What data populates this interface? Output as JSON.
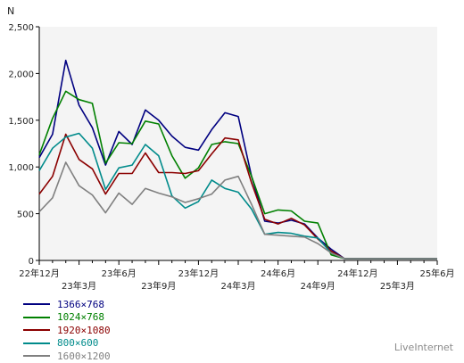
{
  "chart_data": {
    "type": "line",
    "ylabel": "N",
    "ylim": [
      0,
      2500
    ],
    "yticks": [
      0,
      500,
      1000,
      1500,
      2000,
      2500
    ],
    "ytick_labels": [
      "0",
      "500",
      "1,000",
      "1,500",
      "2,000",
      "2,500"
    ],
    "xlim": [
      0,
      30
    ],
    "xticks_row1": [
      {
        "x": 0,
        "label": "22年12月"
      },
      {
        "x": 6,
        "label": "23年6月"
      },
      {
        "x": 12,
        "label": "23年12月"
      },
      {
        "x": 18,
        "label": "24年6月"
      },
      {
        "x": 24,
        "label": "24年12月"
      },
      {
        "x": 30,
        "label": "25年6月"
      }
    ],
    "xticks_row2": [
      {
        "x": 3,
        "label": "23年3月"
      },
      {
        "x": 9,
        "label": "23年9月"
      },
      {
        "x": 15,
        "label": "24年3月"
      },
      {
        "x": 21,
        "label": "24年9月"
      },
      {
        "x": 27,
        "label": "25年3月"
      }
    ],
    "grid": false,
    "plot_background": "#f4f4f4",
    "legend_position": "bottom-left",
    "series": [
      {
        "name": "1366×768",
        "color": "#000080",
        "x": [
          0,
          1,
          2,
          3,
          4,
          5,
          6,
          7,
          8,
          9,
          10,
          11,
          12,
          13,
          14,
          15,
          16,
          17,
          18,
          19,
          20,
          21,
          22,
          23,
          24,
          25,
          26,
          27,
          28,
          29,
          30
        ],
        "values": [
          1100,
          1350,
          2140,
          1660,
          1420,
          1020,
          1380,
          1240,
          1610,
          1500,
          1330,
          1210,
          1180,
          1400,
          1580,
          1540,
          900,
          420,
          400,
          430,
          390,
          240,
          120,
          20,
          20,
          20,
          20,
          20,
          20,
          20,
          20
        ]
      },
      {
        "name": "1024×768",
        "color": "#008000",
        "x": [
          0,
          1,
          2,
          3,
          4,
          5,
          6,
          7,
          8,
          9,
          10,
          11,
          12,
          13,
          14,
          15,
          16,
          17,
          18,
          19,
          20,
          21,
          22,
          23,
          24,
          25,
          26,
          27,
          28,
          29,
          30
        ],
        "values": [
          1130,
          1520,
          1810,
          1720,
          1680,
          1040,
          1260,
          1250,
          1490,
          1460,
          1120,
          880,
          990,
          1240,
          1270,
          1250,
          900,
          500,
          540,
          530,
          420,
          400,
          60,
          20,
          20,
          20,
          20,
          20,
          20,
          20,
          20
        ]
      },
      {
        "name": "1920×1080",
        "color": "#8b0000",
        "x": [
          0,
          1,
          2,
          3,
          4,
          5,
          6,
          7,
          8,
          9,
          10,
          11,
          12,
          13,
          14,
          15,
          16,
          17,
          18,
          19,
          20,
          21,
          22,
          23,
          24,
          25,
          26,
          27,
          28,
          29,
          30
        ],
        "values": [
          710,
          900,
          1350,
          1080,
          980,
          710,
          930,
          930,
          1150,
          940,
          940,
          930,
          960,
          1140,
          1310,
          1290,
          830,
          440,
          390,
          450,
          380,
          230,
          100,
          20,
          20,
          20,
          20,
          20,
          20,
          20,
          20
        ]
      },
      {
        "name": "800×600",
        "color": "#008b8b",
        "x": [
          0,
          1,
          2,
          3,
          4,
          5,
          6,
          7,
          8,
          9,
          10,
          11,
          12,
          13,
          14,
          15,
          16,
          17,
          18,
          19,
          20,
          21,
          22,
          23,
          24,
          25,
          26,
          27,
          28,
          29,
          30
        ],
        "values": [
          960,
          1200,
          1320,
          1360,
          1200,
          760,
          990,
          1020,
          1240,
          1120,
          690,
          560,
          630,
          860,
          770,
          730,
          550,
          280,
          300,
          290,
          260,
          240,
          80,
          20,
          20,
          20,
          20,
          20,
          20,
          20,
          20
        ]
      },
      {
        "name": "1600×1200",
        "color": "#808080",
        "x": [
          0,
          1,
          2,
          3,
          4,
          5,
          6,
          7,
          8,
          9,
          10,
          11,
          12,
          13,
          14,
          15,
          16,
          17,
          18,
          19,
          20,
          21,
          22,
          23,
          24,
          25,
          26,
          27,
          28,
          29,
          30
        ],
        "values": [
          520,
          670,
          1050,
          800,
          700,
          510,
          720,
          600,
          770,
          720,
          680,
          620,
          660,
          710,
          860,
          900,
          600,
          280,
          270,
          260,
          250,
          180,
          80,
          20,
          20,
          20,
          20,
          20,
          20,
          20,
          20
        ]
      }
    ]
  },
  "credit": "LiveInternet"
}
